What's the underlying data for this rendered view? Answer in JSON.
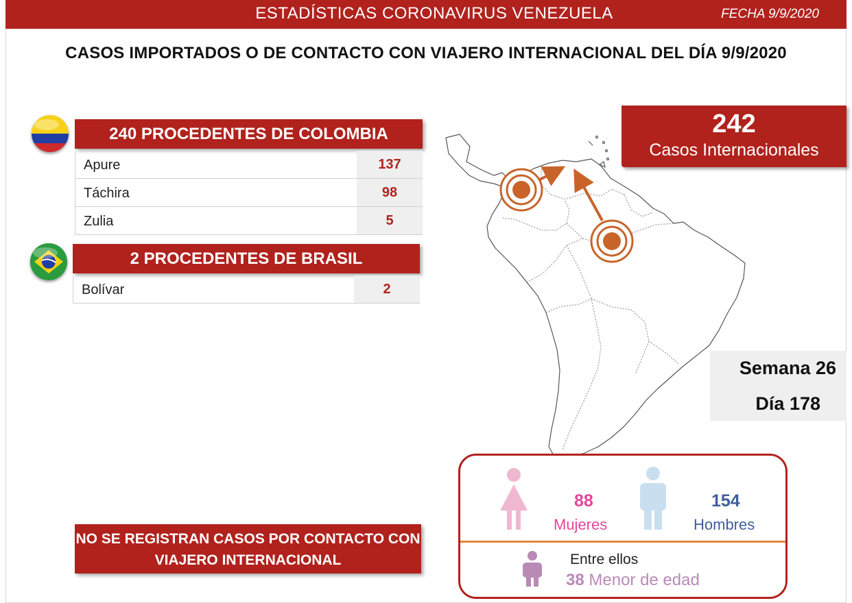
{
  "header": {
    "title": "ESTADÍSTICAS CORONAVIRUS VENEZUELA",
    "date": "FECHA 9/9/2020"
  },
  "subtitle": "CASOS IMPORTADOS O DE CONTACTO CON VIAJERO INTERNACIONAL DEL DÍA  9/9/2020",
  "colombia": {
    "heading": "240 PROCEDENTES DE COLOMBIA",
    "rows": [
      {
        "state": "Apure",
        "value": "137"
      },
      {
        "state": "Táchira",
        "value": "98"
      },
      {
        "state": "Zulia",
        "value": "5"
      }
    ]
  },
  "brasil": {
    "heading": "2 PROCEDENTES DE BRASIL",
    "rows": [
      {
        "state": "Bolívar",
        "value": "2"
      }
    ]
  },
  "international": {
    "total": "242",
    "label": "Casos Internacionales"
  },
  "timeline": {
    "week": "Semana 26",
    "day": "Día 178"
  },
  "contact_notice": "NO SE REGISTRAN CASOS POR CONTACTO CON VIAJERO INTERNACIONAL",
  "gender": {
    "women_count": "88",
    "women_label": "Mujeres",
    "men_count": "154",
    "men_label": "Hombres",
    "among_label": "Entre ellos",
    "minors_count": "38",
    "minors_label": "Menor de edad"
  },
  "colors": {
    "accent_red": "#b1221d",
    "women_pink": "#e0479b",
    "men_blue": "#3f5d9a",
    "minor_purple": "#b98ab6",
    "marker_orange": "#c8642a"
  }
}
